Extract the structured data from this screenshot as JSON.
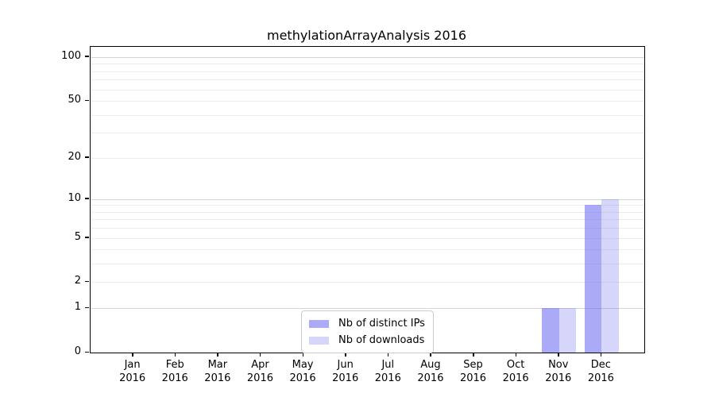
{
  "chart_data": {
    "type": "bar",
    "title": "methylationArrayAnalysis 2016",
    "categories": [
      "Jan",
      "Feb",
      "Mar",
      "Apr",
      "May",
      "Jun",
      "Jul",
      "Aug",
      "Sep",
      "Oct",
      "Nov",
      "Dec"
    ],
    "category_year": "2016",
    "series": [
      {
        "name": "Nb of distinct IPs",
        "color": "#5555ee",
        "alpha": 0.5,
        "values": [
          0,
          0,
          0,
          0,
          0,
          0,
          0,
          0,
          0,
          0,
          1,
          9
        ]
      },
      {
        "name": "Nb of downloads",
        "color": "#5555ee",
        "alpha": 0.24,
        "values": [
          0,
          0,
          0,
          0,
          0,
          0,
          0,
          0,
          0,
          0,
          1,
          10
        ]
      }
    ],
    "xlabel": "",
    "ylabel": "",
    "yscale": "log1p",
    "yticks": [
      0,
      1,
      2,
      5,
      10,
      20,
      50,
      100
    ],
    "ylim": [
      0,
      117
    ],
    "grid": "horizontal",
    "grid_minor_values": [
      2,
      3,
      4,
      6,
      7,
      8,
      9,
      20,
      30,
      40,
      60,
      70,
      80,
      90
    ],
    "grid_major_values": [
      1,
      10,
      100
    ],
    "legend_position": "lower-center",
    "colors": {
      "grid_major": "#d4d4d4",
      "grid_minor": "#ededed",
      "spine": "#000000",
      "text": "#000000",
      "background": "#ffffff",
      "legend_border": "#cccccc"
    }
  }
}
